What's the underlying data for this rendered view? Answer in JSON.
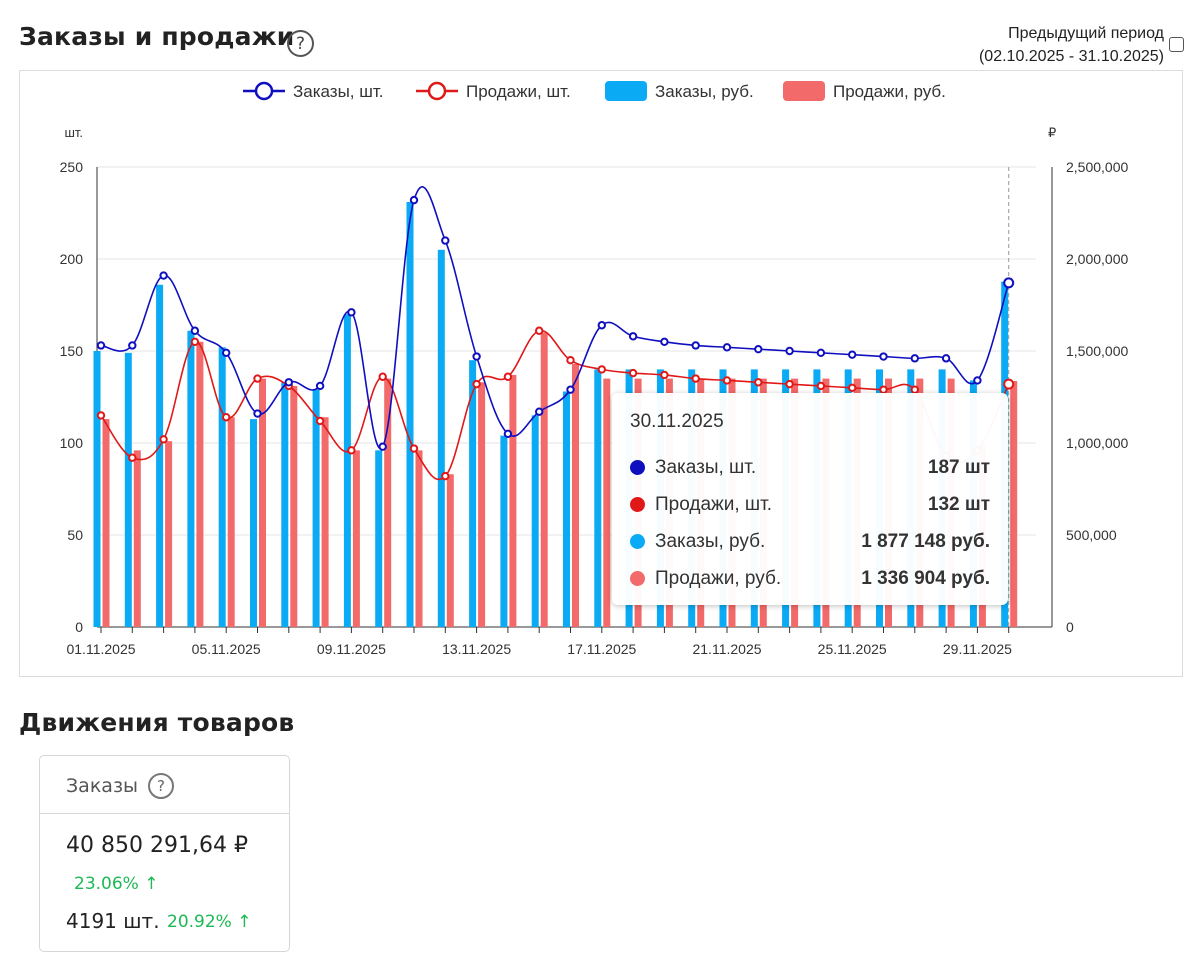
{
  "header": {
    "title": "Заказы и продажи",
    "help": "?",
    "prev_period_label": "Предыдущий период",
    "prev_period_range": "(02.10.2025 - 31.10.2025)"
  },
  "colors": {
    "orders_qty": "#0f0fc0",
    "sales_qty": "#e01818",
    "orders_rub": "#0aaaf5",
    "sales_rub": "#f26a6a"
  },
  "chart_data": {
    "type": "bar",
    "left_axis_unit": "шт.",
    "right_axis_unit": "₽",
    "y_left_lim": [
      0,
      250
    ],
    "y_right_lim": [
      0,
      2500000
    ],
    "y_left_ticks": [
      "0",
      "50",
      "100",
      "150",
      "200",
      "250"
    ],
    "y_right_ticks": [
      "0",
      "500,000",
      "1,000,000",
      "1,500,000",
      "2,000,000",
      "2,500,000"
    ],
    "x_tick_labels": [
      "01.11.2025",
      "05.11.2025",
      "09.11.2025",
      "13.11.2025",
      "17.11.2025",
      "21.11.2025",
      "25.11.2025",
      "29.11.2025"
    ],
    "x": [
      "01.11.2025",
      "02.11.2025",
      "03.11.2025",
      "04.11.2025",
      "05.11.2025",
      "06.11.2025",
      "07.11.2025",
      "08.11.2025",
      "09.11.2025",
      "10.11.2025",
      "11.11.2025",
      "12.11.2025",
      "13.11.2025",
      "14.11.2025",
      "15.11.2025",
      "16.11.2025",
      "17.11.2025",
      "18.11.2025",
      "19.11.2025",
      "20.11.2025",
      "21.11.2025",
      "22.11.2025",
      "23.11.2025",
      "24.11.2025",
      "25.11.2025",
      "26.11.2025",
      "27.11.2025",
      "28.11.2025",
      "29.11.2025",
      "30.11.2025"
    ],
    "legend": [
      "Заказы, шт.",
      "Продажи, шт.",
      "Заказы, руб.",
      "Продажи, руб."
    ],
    "series": [
      {
        "name": "Заказы, шт.",
        "kind": "line",
        "axis": "left",
        "values": [
          153,
          153,
          191,
          161,
          149,
          116,
          133,
          131,
          171,
          98,
          232,
          210,
          147,
          105,
          117,
          129,
          164,
          158,
          155,
          153,
          152,
          151,
          150,
          149,
          148,
          147,
          146,
          146,
          134,
          187
        ]
      },
      {
        "name": "Продажи, шт.",
        "kind": "line",
        "axis": "left",
        "values": [
          115,
          92,
          102,
          155,
          114,
          135,
          131,
          112,
          96,
          136,
          97,
          82,
          132,
          136,
          161,
          145,
          140,
          138,
          137,
          135,
          134,
          133,
          132,
          131,
          130,
          129,
          129,
          93,
          96,
          132
        ]
      },
      {
        "name": "Заказы, руб.",
        "kind": "bar",
        "axis": "right",
        "values": [
          1500000,
          1490000,
          1860000,
          1610000,
          1520000,
          1130000,
          1330000,
          1290000,
          1700000,
          960000,
          2310000,
          2050000,
          1450000,
          1040000,
          1150000,
          1280000,
          1400000,
          1400000,
          1400000,
          1400000,
          1400000,
          1400000,
          1400000,
          1400000,
          1400000,
          1400000,
          1400000,
          1400000,
          1340000,
          1877148
        ]
      },
      {
        "name": "Продажи, руб.",
        "kind": "bar",
        "axis": "right",
        "values": [
          1130000,
          960000,
          1010000,
          1550000,
          1140000,
          1350000,
          1310000,
          1140000,
          960000,
          1350000,
          960000,
          830000,
          1330000,
          1370000,
          1600000,
          1430000,
          1350000,
          1350000,
          1350000,
          1350000,
          1350000,
          1350000,
          1350000,
          1350000,
          1350000,
          1350000,
          1350000,
          1350000,
          990000,
          1336904
        ]
      }
    ],
    "grid": true,
    "legend_position": "top-center"
  },
  "tooltip": {
    "date": "30.11.2025",
    "rows": [
      {
        "label": "Заказы, шт.",
        "value": "187 шт"
      },
      {
        "label": "Продажи, шт.",
        "value": "132 шт"
      },
      {
        "label": "Заказы, руб.",
        "value": "1 877 148 руб."
      },
      {
        "label": "Продажи, руб.",
        "value": "1 336 904 руб."
      }
    ]
  },
  "movements": {
    "title": "Движения товаров",
    "card": {
      "title": "Заказы",
      "help": "?",
      "amount": "40 850 291,64 ₽",
      "amount_change": "23.06% ↑",
      "count": "4191 шт.",
      "count_change": "20.92% ↑"
    }
  }
}
